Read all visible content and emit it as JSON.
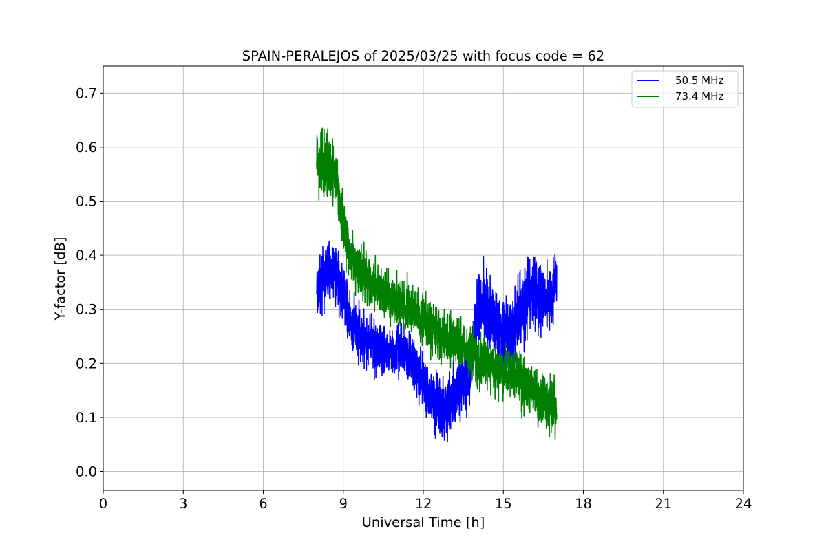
{
  "chart_data": {
    "type": "line",
    "title": "SPAIN-PERALEJOS of 2025/03/25 with focus code = 62",
    "xlabel": "Universal Time [h]",
    "ylabel": "Y-factor [dB]",
    "xlim": [
      0,
      24
    ],
    "ylim": [
      -0.035,
      0.75
    ],
    "xticks": [
      0,
      3,
      6,
      9,
      12,
      15,
      18,
      21,
      24
    ],
    "yticks": [
      0.0,
      0.1,
      0.2,
      0.3,
      0.4,
      0.5,
      0.6,
      0.7
    ],
    "ytick_labels": [
      "0.0",
      "0.1",
      "0.2",
      "0.3",
      "0.4",
      "0.5",
      "0.6",
      "0.7"
    ],
    "grid": true,
    "legend_position": "upper right",
    "series": [
      {
        "name": "50.5 MHz",
        "color": "#0000ff",
        "x": [
          8.0,
          8.25,
          8.5,
          8.75,
          9.0,
          9.25,
          9.5,
          9.75,
          10.0,
          10.25,
          10.5,
          10.75,
          11.0,
          11.25,
          11.5,
          11.75,
          12.0,
          12.25,
          12.5,
          12.75,
          13.0,
          13.25,
          13.5,
          13.75,
          14.0,
          14.25,
          14.5,
          14.75,
          15.0,
          15.25,
          15.5,
          15.75,
          16.0,
          16.25,
          16.5,
          16.75,
          17.0
        ],
        "y": [
          0.32,
          0.36,
          0.37,
          0.36,
          0.33,
          0.28,
          0.26,
          0.25,
          0.24,
          0.23,
          0.22,
          0.22,
          0.23,
          0.22,
          0.21,
          0.19,
          0.16,
          0.14,
          0.12,
          0.11,
          0.13,
          0.15,
          0.16,
          0.18,
          0.3,
          0.31,
          0.29,
          0.27,
          0.26,
          0.25,
          0.28,
          0.3,
          0.33,
          0.32,
          0.32,
          0.33,
          0.34
        ],
        "spread": [
          0.05,
          0.06,
          0.06,
          0.06,
          0.06,
          0.05,
          0.05,
          0.05,
          0.05,
          0.05,
          0.05,
          0.05,
          0.05,
          0.05,
          0.05,
          0.05,
          0.06,
          0.06,
          0.06,
          0.06,
          0.06,
          0.06,
          0.06,
          0.06,
          0.06,
          0.07,
          0.07,
          0.07,
          0.07,
          0.07,
          0.07,
          0.07,
          0.07,
          0.07,
          0.07,
          0.06,
          0.06
        ]
      },
      {
        "name": "73.4 MHz",
        "color": "#008000",
        "x": [
          8.0,
          8.25,
          8.5,
          8.75,
          9.0,
          9.25,
          9.5,
          9.75,
          10.0,
          10.25,
          10.5,
          10.75,
          11.0,
          11.25,
          11.5,
          11.75,
          12.0,
          12.25,
          12.5,
          12.75,
          13.0,
          13.25,
          13.5,
          13.75,
          14.0,
          14.25,
          14.5,
          14.75,
          15.0,
          15.25,
          15.5,
          15.75,
          16.0,
          16.25,
          16.5,
          16.75,
          17.0
        ],
        "y": [
          0.58,
          0.57,
          0.56,
          0.55,
          0.45,
          0.4,
          0.38,
          0.37,
          0.35,
          0.34,
          0.33,
          0.32,
          0.32,
          0.31,
          0.3,
          0.29,
          0.28,
          0.27,
          0.26,
          0.25,
          0.24,
          0.24,
          0.23,
          0.22,
          0.21,
          0.2,
          0.2,
          0.19,
          0.19,
          0.18,
          0.17,
          0.16,
          0.15,
          0.14,
          0.13,
          0.12,
          0.12
        ],
        "spread": [
          0.06,
          0.06,
          0.06,
          0.06,
          0.06,
          0.05,
          0.05,
          0.05,
          0.05,
          0.05,
          0.05,
          0.05,
          0.05,
          0.05,
          0.05,
          0.05,
          0.05,
          0.05,
          0.05,
          0.05,
          0.05,
          0.05,
          0.05,
          0.05,
          0.05,
          0.05,
          0.05,
          0.05,
          0.05,
          0.05,
          0.05,
          0.05,
          0.05,
          0.05,
          0.05,
          0.05,
          0.05
        ]
      }
    ]
  }
}
